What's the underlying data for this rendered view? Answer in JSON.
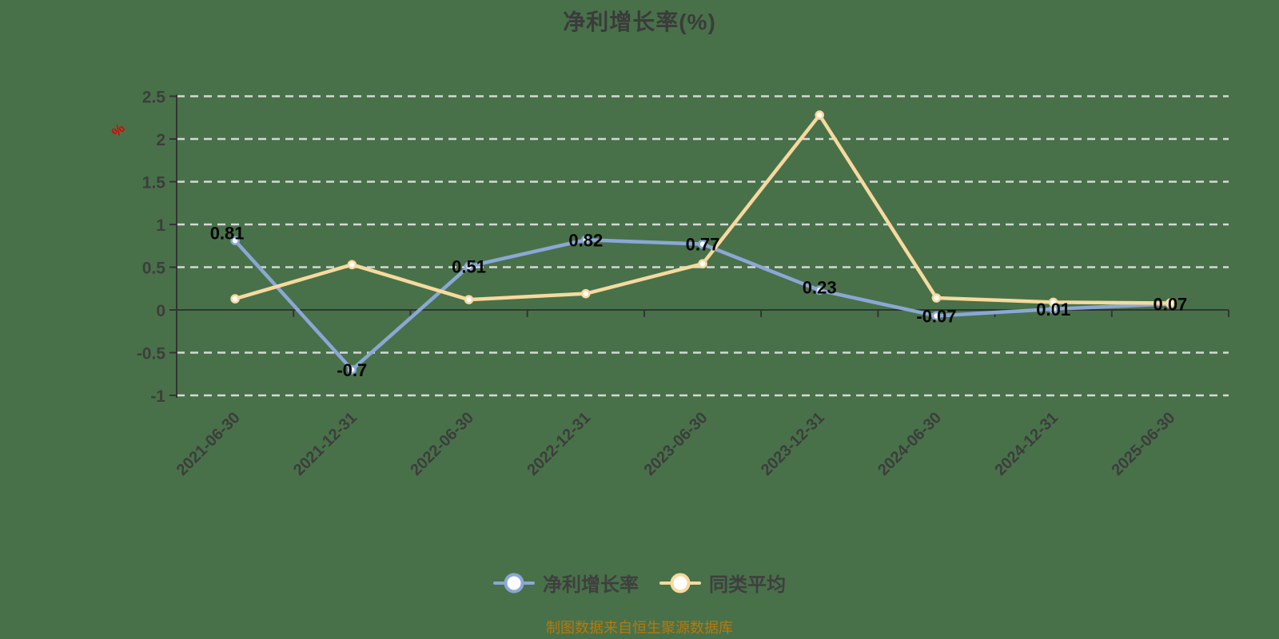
{
  "title": "净利增长率(%)",
  "footer": "制图数据来自恒生聚源数据库",
  "legend": [
    {
      "key": "net-profit-growth",
      "label": "净利增长率",
      "color": "#8ba7d6"
    },
    {
      "key": "peer-average",
      "label": "同类平均",
      "color": "#f7d99e"
    }
  ],
  "y_axis_unit": "%",
  "colors": {
    "background": "#487149",
    "series_blue": "#8ba7d6",
    "series_yellow": "#f7d99e",
    "grid": "#e2e2e2",
    "axis": "#333333",
    "tick_text": "#3d3d3d",
    "data_label": "#050505",
    "unit_red": "#e60000",
    "footer_orange": "#b5790f"
  },
  "chart_data": {
    "type": "line",
    "title": "净利增长率(%)",
    "categories": [
      "2021-06-30",
      "2021-12-31",
      "2022-06-30",
      "2022-12-31",
      "2023-06-30",
      "2023-12-31",
      "2024-06-30",
      "2024-12-31",
      "2025-06-30"
    ],
    "series": [
      {
        "key": "net-profit-growth",
        "name": "净利增长率",
        "color": "#8ba7d6",
        "values": [
          0.81,
          -0.7,
          0.51,
          0.82,
          0.77,
          0.23,
          -0.07,
          0.01,
          0.07
        ],
        "labels": [
          "0.81",
          "-0.7",
          "0.51",
          "0.82",
          "0.77",
          "0.23",
          "-0.07",
          "0.01",
          "0.07"
        ]
      },
      {
        "key": "peer-average",
        "name": "同类平均",
        "color": "#f7d99e",
        "values": [
          0.13,
          0.53,
          0.12,
          0.19,
          0.54,
          2.28,
          0.14,
          0.09,
          0.08
        ],
        "labels": []
      }
    ],
    "ylim": [
      -1,
      2.5
    ],
    "y_ticks": [
      {
        "value": 2.5,
        "label": "2.5"
      },
      {
        "value": 2,
        "label": "2"
      },
      {
        "value": 1.5,
        "label": "1.5"
      },
      {
        "value": 1,
        "label": "1"
      },
      {
        "value": 0.5,
        "label": "0.5"
      },
      {
        "value": 0,
        "label": "0"
      },
      {
        "value": -0.5,
        "label": "-0.5"
      },
      {
        "value": -1,
        "label": "-1"
      }
    ],
    "grid": "dashed",
    "legend_position": "bottom",
    "xlabel": "",
    "ylabel": "%"
  }
}
